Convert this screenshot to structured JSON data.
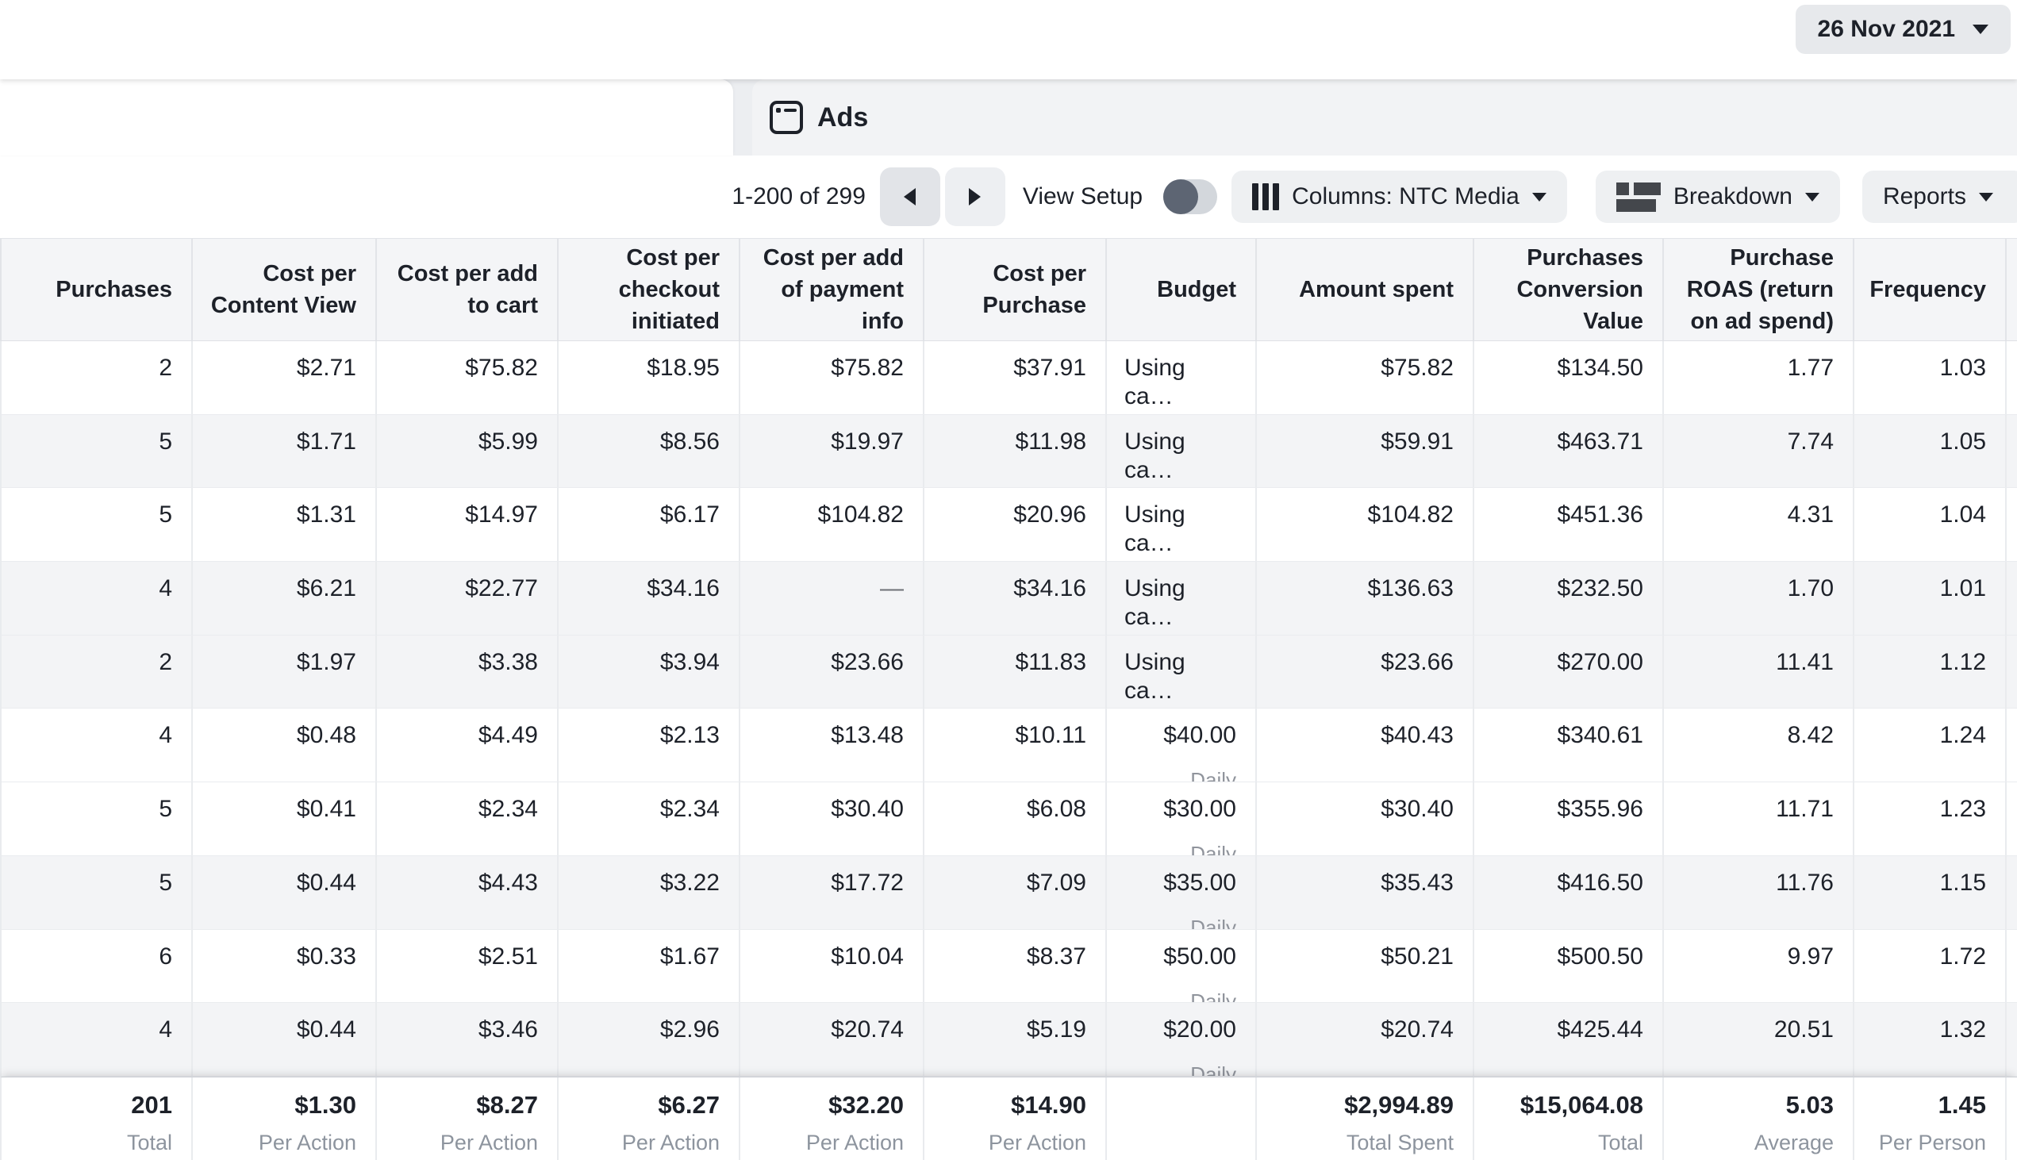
{
  "header": {
    "date_button": {
      "label": "26 Nov 2021",
      "icon": "caret-down-icon"
    }
  },
  "tabs": {
    "ads_tab": {
      "label": "Ads",
      "icon": "window-icon"
    }
  },
  "toolbar": {
    "pagination": {
      "range": "1-200 of 299",
      "prev_icon": "arrow-left-icon",
      "next_icon": "arrow-right-icon"
    },
    "view_setup": {
      "label": "View Setup",
      "toggle_state": "off"
    },
    "columns_button": {
      "label": "Columns: NTC Media",
      "icon": "columns-icon"
    },
    "breakdown_button": {
      "label": "Breakdown",
      "icon": "breakdown-icon"
    },
    "reports_button": {
      "label": "Reports"
    }
  },
  "table": {
    "columns": [
      {
        "label": "Purchases"
      },
      {
        "label": "Cost per Content View"
      },
      {
        "label": "Cost per add to cart"
      },
      {
        "label": "Cost per checkout initiated"
      },
      {
        "label": "Cost per add of payment info"
      },
      {
        "label": "Cost per Purchase"
      },
      {
        "label": "Budget"
      },
      {
        "label": "Amount spent"
      },
      {
        "label": "Purchases Conversion Value"
      },
      {
        "label": "Purchase ROAS (return on ad spend)"
      },
      {
        "label": "Frequency"
      },
      {
        "label": ""
      }
    ],
    "rows": [
      {
        "shaded": false,
        "cells": [
          "2",
          "$2.71",
          "$75.82",
          "$18.95",
          "$75.82",
          "$37.91",
          {
            "v": "Using ca…",
            "align": "left"
          },
          "$75.82",
          "$134.50",
          "1.77",
          "1.03"
        ]
      },
      {
        "shaded": true,
        "cells": [
          "5",
          "$1.71",
          "$5.99",
          "$8.56",
          "$19.97",
          "$11.98",
          {
            "v": "Using ca…",
            "align": "left"
          },
          "$59.91",
          "$463.71",
          "7.74",
          "1.05"
        ]
      },
      {
        "shaded": false,
        "cells": [
          "5",
          "$1.31",
          "$14.97",
          "$6.17",
          "$104.82",
          "$20.96",
          {
            "v": "Using ca…",
            "align": "left"
          },
          "$104.82",
          "$451.36",
          "4.31",
          "1.04"
        ]
      },
      {
        "shaded": true,
        "cells": [
          "4",
          "$6.21",
          "$22.77",
          "$34.16",
          {
            "v": "—",
            "muted": true
          },
          "$34.16",
          {
            "v": "Using ca…",
            "align": "left"
          },
          "$136.63",
          "$232.50",
          "1.70",
          "1.01"
        ]
      },
      {
        "shaded": true,
        "cells": [
          "2",
          "$1.97",
          "$3.38",
          "$3.94",
          "$23.66",
          "$11.83",
          {
            "v": "Using ca…",
            "align": "left"
          },
          "$23.66",
          "$270.00",
          "11.41",
          "1.12"
        ]
      },
      {
        "shaded": false,
        "cells": [
          "4",
          "$0.48",
          "$4.49",
          "$2.13",
          "$13.48",
          "$10.11",
          {
            "v": "$40.00",
            "sub": "Daily"
          },
          "$40.43",
          "$340.61",
          "8.42",
          "1.24"
        ]
      },
      {
        "shaded": false,
        "cells": [
          "5",
          "$0.41",
          "$2.34",
          "$2.34",
          "$30.40",
          "$6.08",
          {
            "v": "$30.00",
            "sub": "Daily"
          },
          "$30.40",
          "$355.96",
          "11.71",
          "1.23"
        ]
      },
      {
        "shaded": true,
        "cells": [
          "5",
          "$0.44",
          "$4.43",
          "$3.22",
          "$17.72",
          "$7.09",
          {
            "v": "$35.00",
            "sub": "Daily"
          },
          "$35.43",
          "$416.50",
          "11.76",
          "1.15"
        ]
      },
      {
        "shaded": false,
        "cells": [
          "6",
          "$0.33",
          "$2.51",
          "$1.67",
          "$10.04",
          "$8.37",
          {
            "v": "$50.00",
            "sub": "Daily"
          },
          "$50.21",
          "$500.50",
          "9.97",
          "1.72"
        ]
      },
      {
        "shaded": true,
        "cells": [
          "4",
          "$0.44",
          "$3.46",
          "$2.96",
          "$20.74",
          "$5.19",
          {
            "v": "$20.00",
            "sub": "Daily"
          },
          "$20.74",
          "$425.44",
          "20.51",
          "1.32"
        ]
      }
    ],
    "footer": {
      "cells": [
        {
          "v": "201",
          "sub": "Total"
        },
        {
          "v": "$1.30",
          "sub": "Per Action"
        },
        {
          "v": "$8.27",
          "sub": "Per Action"
        },
        {
          "v": "$6.27",
          "sub": "Per Action"
        },
        {
          "v": "$32.20",
          "sub": "Per Action"
        },
        {
          "v": "$14.90",
          "sub": "Per Action"
        },
        {
          "v": "",
          "sub": ""
        },
        {
          "v": "$2,994.89",
          "sub": "Total Spent"
        },
        {
          "v": "$15,064.08",
          "sub": "Total"
        },
        {
          "v": "5.03",
          "sub": "Average"
        },
        {
          "v": "1.45",
          "sub": "Per Person"
        }
      ]
    }
  },
  "colors": {
    "text_dark": "#1d2129",
    "text_muted": "#90949c",
    "stripe": "#f3f4f6",
    "header_bg": "#f4f5f7",
    "pill_bg": "#eef0f2",
    "tab_bg": "#f2f3f5",
    "page_bg": "#eceef1",
    "border": "#e4e6eb"
  }
}
